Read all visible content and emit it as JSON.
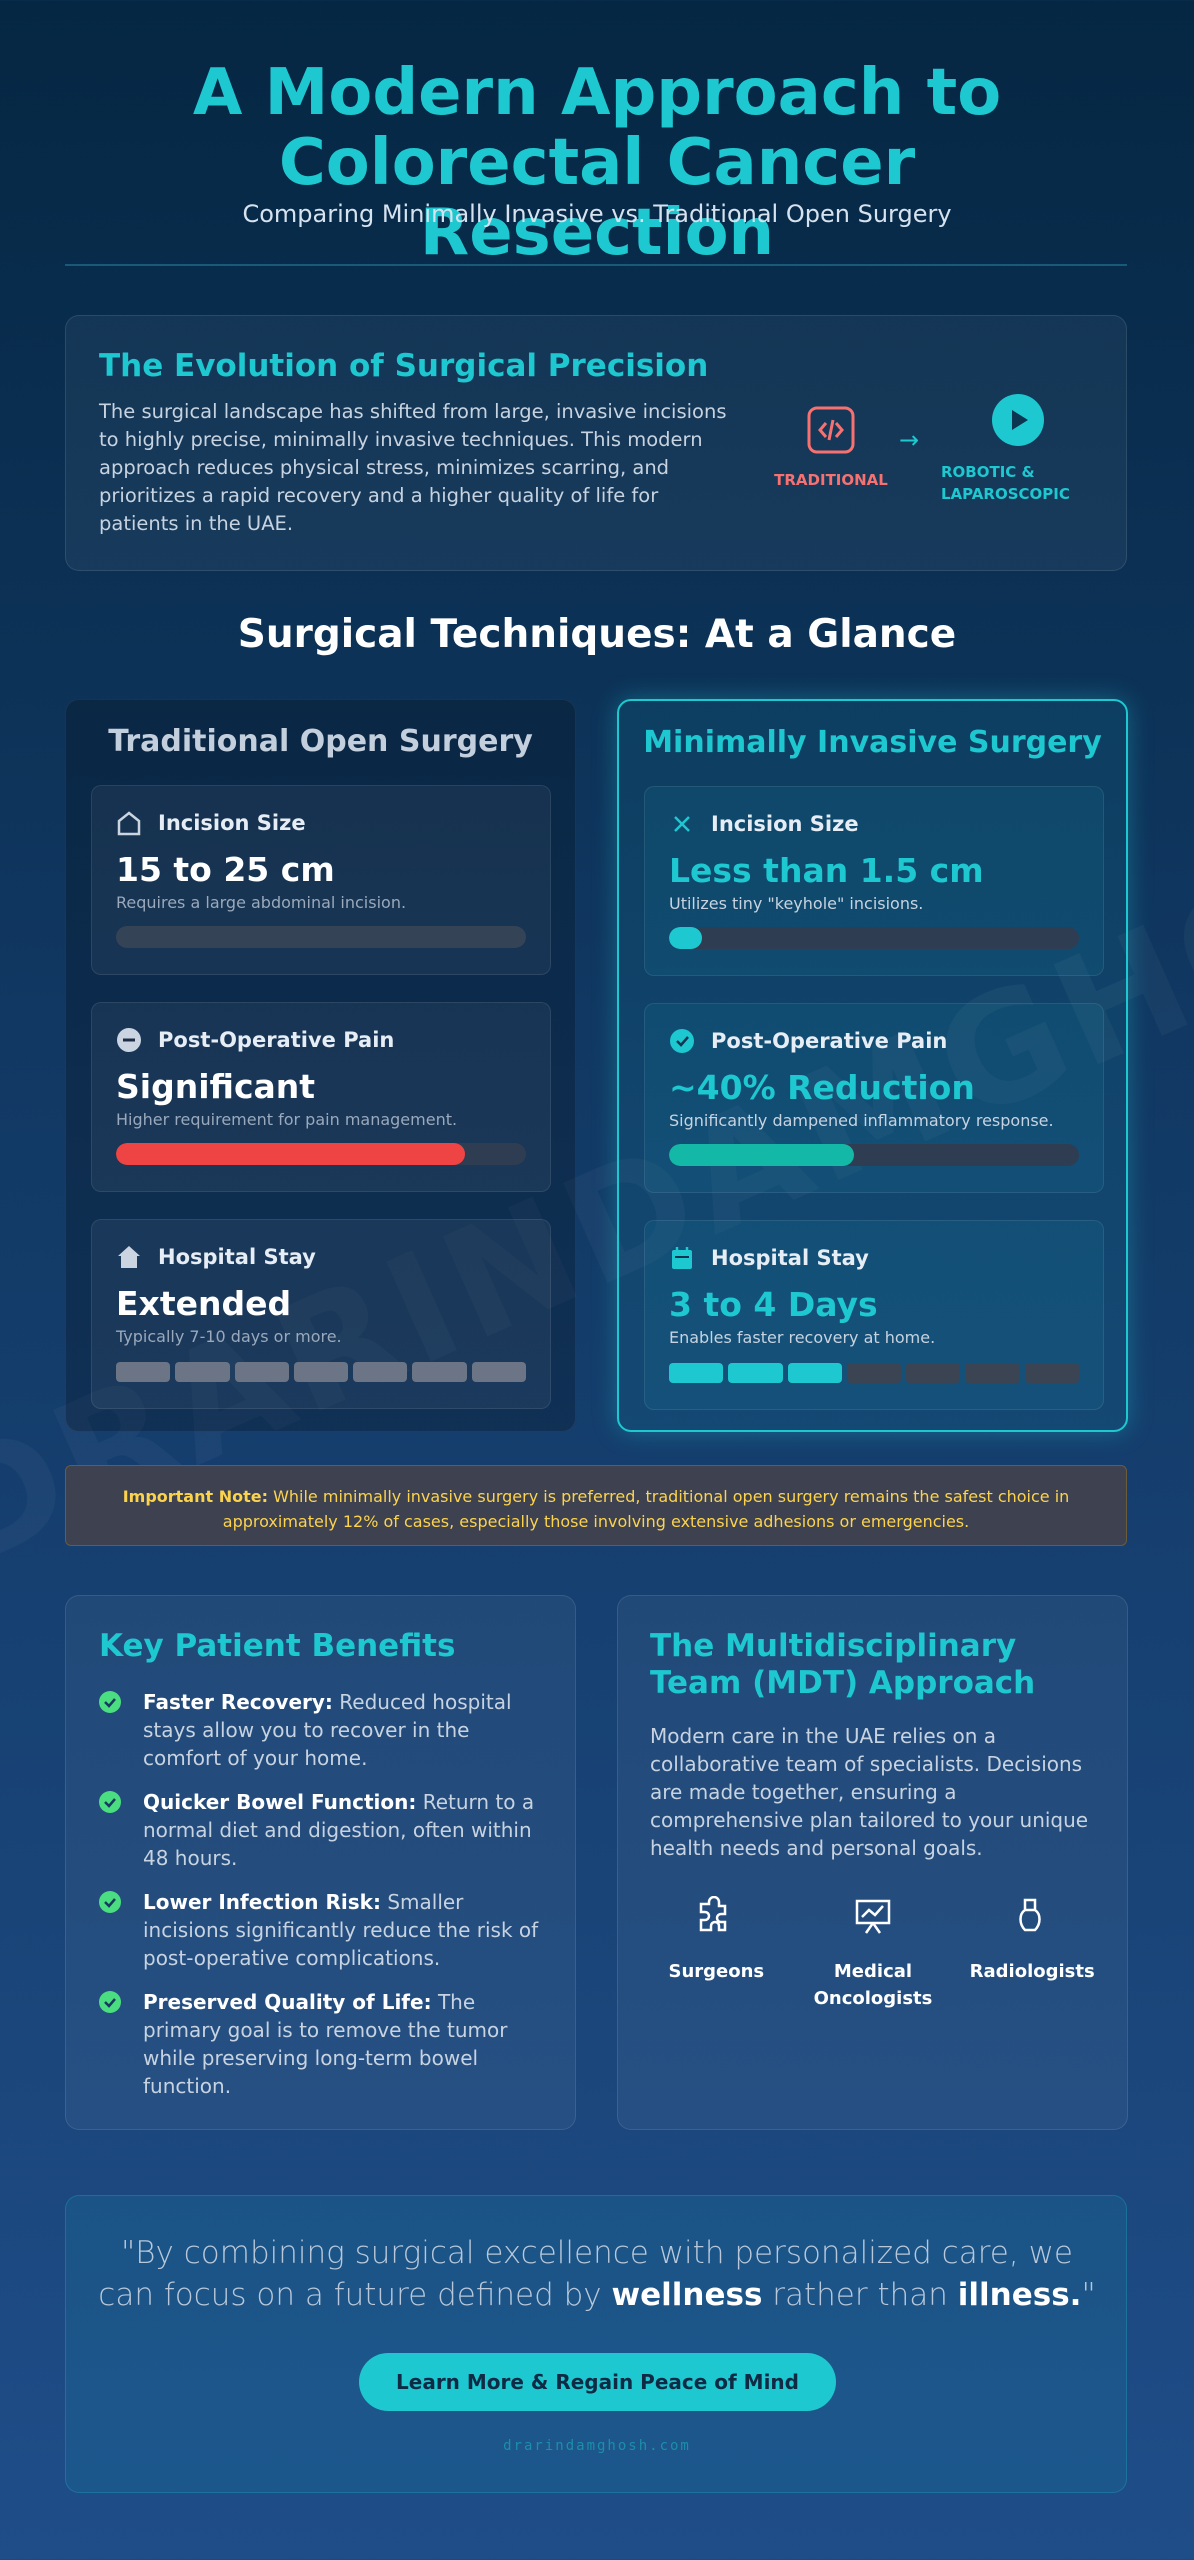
{
  "header": {
    "title": "A Modern Approach to Colorectal Cancer Resection",
    "subtitle": "Comparing Minimally Invasive vs. Traditional Open Surgery"
  },
  "watermark": "DRARINDAMGHOSH",
  "evolution": {
    "title": "The Evolution of Surgical Precision",
    "text": "The surgical landscape has shifted from large, invasive incisions to highly precise, minimally invasive techniques. This modern approach reduces physical stress, minimizes scarring, and prioritizes a rapid recovery and a higher quality of life for patients in the UAE.",
    "from_label": "TRADITIONAL",
    "arrow": "→",
    "to_label": "ROBOTIC & LAPAROSCOPIC"
  },
  "techniques": {
    "title": "Surgical Techniques: At a Glance",
    "columns": [
      {
        "title": "Traditional Open Surgery",
        "metrics": [
          {
            "label": "Incision Size",
            "value": "15 to 25 cm",
            "note": "Requires a large abdominal incision.",
            "fill": 100,
            "color": "#354357"
          },
          {
            "label": "Post-Operative Pain",
            "value": "Significant",
            "note": "Higher requirement for pain management.",
            "fill": 85,
            "color": "#ef4444"
          },
          {
            "label": "Hospital Stay",
            "value": "Extended",
            "note": "Typically 7-10 days or more.",
            "segments": 7,
            "filled": 7,
            "color": "#6b7585"
          }
        ]
      },
      {
        "title": "Minimally Invasive Surgery",
        "metrics": [
          {
            "label": "Incision Size",
            "value": "Less than 1.5 cm",
            "note": "Utilizes tiny \"keyhole\" incisions.",
            "fill": 8,
            "color": "#1ec8d0"
          },
          {
            "label": "Post-Operative Pain",
            "value": "~40% Reduction",
            "note": "Significantly dampened inflammatory response.",
            "fill": 45,
            "color": "#14b8a6"
          },
          {
            "label": "Hospital Stay",
            "value": "3 to 4 Days",
            "note": "Enables faster recovery at home.",
            "segments": 7,
            "filled": 3,
            "color": "#1ec8d0"
          }
        ]
      }
    ]
  },
  "note": {
    "label": "Important Note:",
    "text": "While minimally invasive surgery is preferred, traditional open surgery remains the safest choice in approximately 12% of cases, especially those involving extensive adhesions or emergencies."
  },
  "benefits": {
    "title": "Key Patient Benefits",
    "items": [
      {
        "lead": "Faster Recovery:",
        "text": "Reduced hospital stays allow you to recover in the comfort of your home."
      },
      {
        "lead": "Quicker Bowel Function:",
        "text": "Return to a normal diet and digestion, often within 48 hours."
      },
      {
        "lead": "Lower Infection Risk:",
        "text": "Smaller incisions significantly reduce the risk of post-operative complications."
      },
      {
        "lead": "Preserved Quality of Life:",
        "text": "The primary goal is to remove the tumor while preserving long-term bowel function."
      }
    ]
  },
  "mdt": {
    "title": "The Multidisciplinary Team (MDT) Approach",
    "text": "Modern care in the UAE relies on a collaborative team of specialists. Decisions are made together, ensuring a comprehensive plan tailored to your unique health needs and personal goals.",
    "roles": [
      "Surgeons",
      "Medical Oncologists",
      "Radiologists"
    ]
  },
  "quote": {
    "parts": [
      "\"By combining surgical excellence with personalized care, we can focus on a future defined by ",
      "wellness",
      " rather than ",
      "illness.",
      "\""
    ]
  },
  "cta": "Learn More & Regain Peace of Mind",
  "footer": "drarindamghosh.com"
}
